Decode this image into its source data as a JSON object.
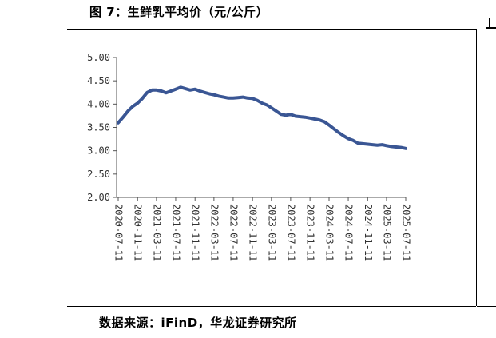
{
  "figure": {
    "title": "图 7：生鲜乳平均价（元/公斤）",
    "source": "数据来源：iFinD，华龙证券研究所"
  },
  "chart_data": {
    "type": "line",
    "title": "",
    "xlabel": "",
    "ylabel": "",
    "ylim": [
      2.0,
      5.0
    ],
    "y_ticks": [
      "5.00",
      "4.50",
      "4.00",
      "3.50",
      "3.00",
      "2.50",
      "2.00"
    ],
    "x_ticks": [
      "2020-07-11",
      "2020-11-11",
      "2021-03-11",
      "2021-07-11",
      "2021-11-11",
      "2022-03-11",
      "2022-07-11",
      "2022-11-11",
      "2023-03-11",
      "2023-07-11",
      "2023-11-11",
      "2024-03-11",
      "2024-07-11",
      "2024-11-11",
      "2025-03-11",
      "2025-07-11"
    ],
    "grid": false,
    "legend": "none",
    "line_color": "#3a5694",
    "series": [
      {
        "x": [
          "2020-07-11",
          "2020-08-11",
          "2020-09-11",
          "2020-10-11",
          "2020-11-11",
          "2020-12-11",
          "2021-01-11",
          "2021-02-11",
          "2021-03-11",
          "2021-04-11",
          "2021-05-11",
          "2021-06-11",
          "2021-07-11",
          "2021-08-11",
          "2021-09-11",
          "2021-10-11",
          "2021-11-11",
          "2021-12-11",
          "2022-01-11",
          "2022-02-11",
          "2022-03-11",
          "2022-04-11",
          "2022-05-11",
          "2022-06-11",
          "2022-07-11",
          "2022-08-11",
          "2022-09-11",
          "2022-10-11",
          "2022-11-11",
          "2022-12-11",
          "2023-01-11",
          "2023-02-11",
          "2023-03-11",
          "2023-04-11",
          "2023-05-11",
          "2023-06-11",
          "2023-07-11",
          "2023-08-11",
          "2023-09-11",
          "2023-10-11",
          "2023-11-11",
          "2023-12-11",
          "2024-01-11",
          "2024-02-11",
          "2024-03-11",
          "2024-04-11",
          "2024-05-11",
          "2024-06-11",
          "2024-07-11",
          "2024-08-11",
          "2024-09-11",
          "2024-10-11",
          "2024-11-11",
          "2024-12-11",
          "2025-01-11",
          "2025-02-11",
          "2025-03-11",
          "2025-04-11",
          "2025-05-11",
          "2025-06-11",
          "2025-07-11"
        ],
        "values": [
          3.6,
          3.72,
          3.85,
          3.95,
          4.02,
          4.12,
          4.25,
          4.3,
          4.3,
          4.28,
          4.24,
          4.28,
          4.32,
          4.36,
          4.33,
          4.3,
          4.32,
          4.28,
          4.25,
          4.22,
          4.2,
          4.17,
          4.15,
          4.13,
          4.13,
          4.14,
          4.15,
          4.13,
          4.12,
          4.08,
          4.02,
          3.98,
          3.92,
          3.85,
          3.78,
          3.76,
          3.78,
          3.74,
          3.73,
          3.72,
          3.7,
          3.68,
          3.66,
          3.62,
          3.55,
          3.47,
          3.39,
          3.32,
          3.26,
          3.22,
          3.16,
          3.15,
          3.14,
          3.13,
          3.12,
          3.13,
          3.11,
          3.09,
          3.08,
          3.07,
          3.05
        ]
      }
    ]
  }
}
